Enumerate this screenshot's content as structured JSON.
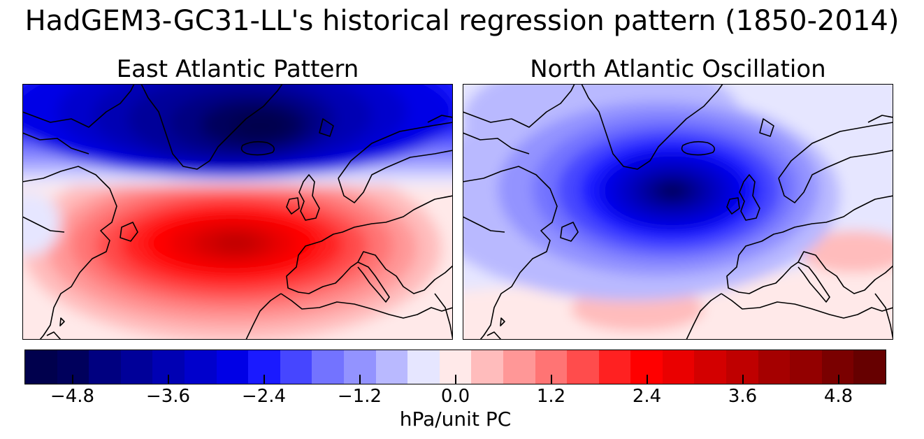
{
  "figure": {
    "title": "HadGEM3-GC31-LL's historical regression pattern (1850-2014)"
  },
  "panels": [
    {
      "title": "East Atlantic Pattern",
      "peak_negative_hPa": -4.5,
      "peak_positive_hPa": 4.0
    },
    {
      "title": "North Atlantic Oscillation",
      "peak_negative_hPa": -5.0,
      "peak_positive_hPa": 1.0
    }
  ],
  "colorbar": {
    "label": "hPa/unit PC",
    "min": -5.4,
    "max": 5.4,
    "step": 0.4,
    "tick_labels": [
      "−4.8",
      "−3.6",
      "−2.4",
      "−1.2",
      "0.0",
      "1.2",
      "2.4",
      "3.6",
      "4.8"
    ],
    "tick_values": [
      -4.8,
      -3.6,
      -2.4,
      -1.2,
      0.0,
      1.2,
      2.4,
      3.6,
      4.8
    ],
    "colors": [
      "#00004d",
      "#00005c",
      "#000080",
      "#000099",
      "#0000b3",
      "#0000cc",
      "#0000e6",
      "#1a1aff",
      "#4646ff",
      "#7373ff",
      "#9393ff",
      "#b9b9ff",
      "#e6e6ff",
      "#ffe9e9",
      "#ffbcbc",
      "#ff9797",
      "#ff7474",
      "#ff4c4c",
      "#ff2121",
      "#ff0000",
      "#ea0000",
      "#d30000",
      "#bf0000",
      "#a50000",
      "#930000",
      "#7a0000",
      "#660000"
    ]
  }
}
